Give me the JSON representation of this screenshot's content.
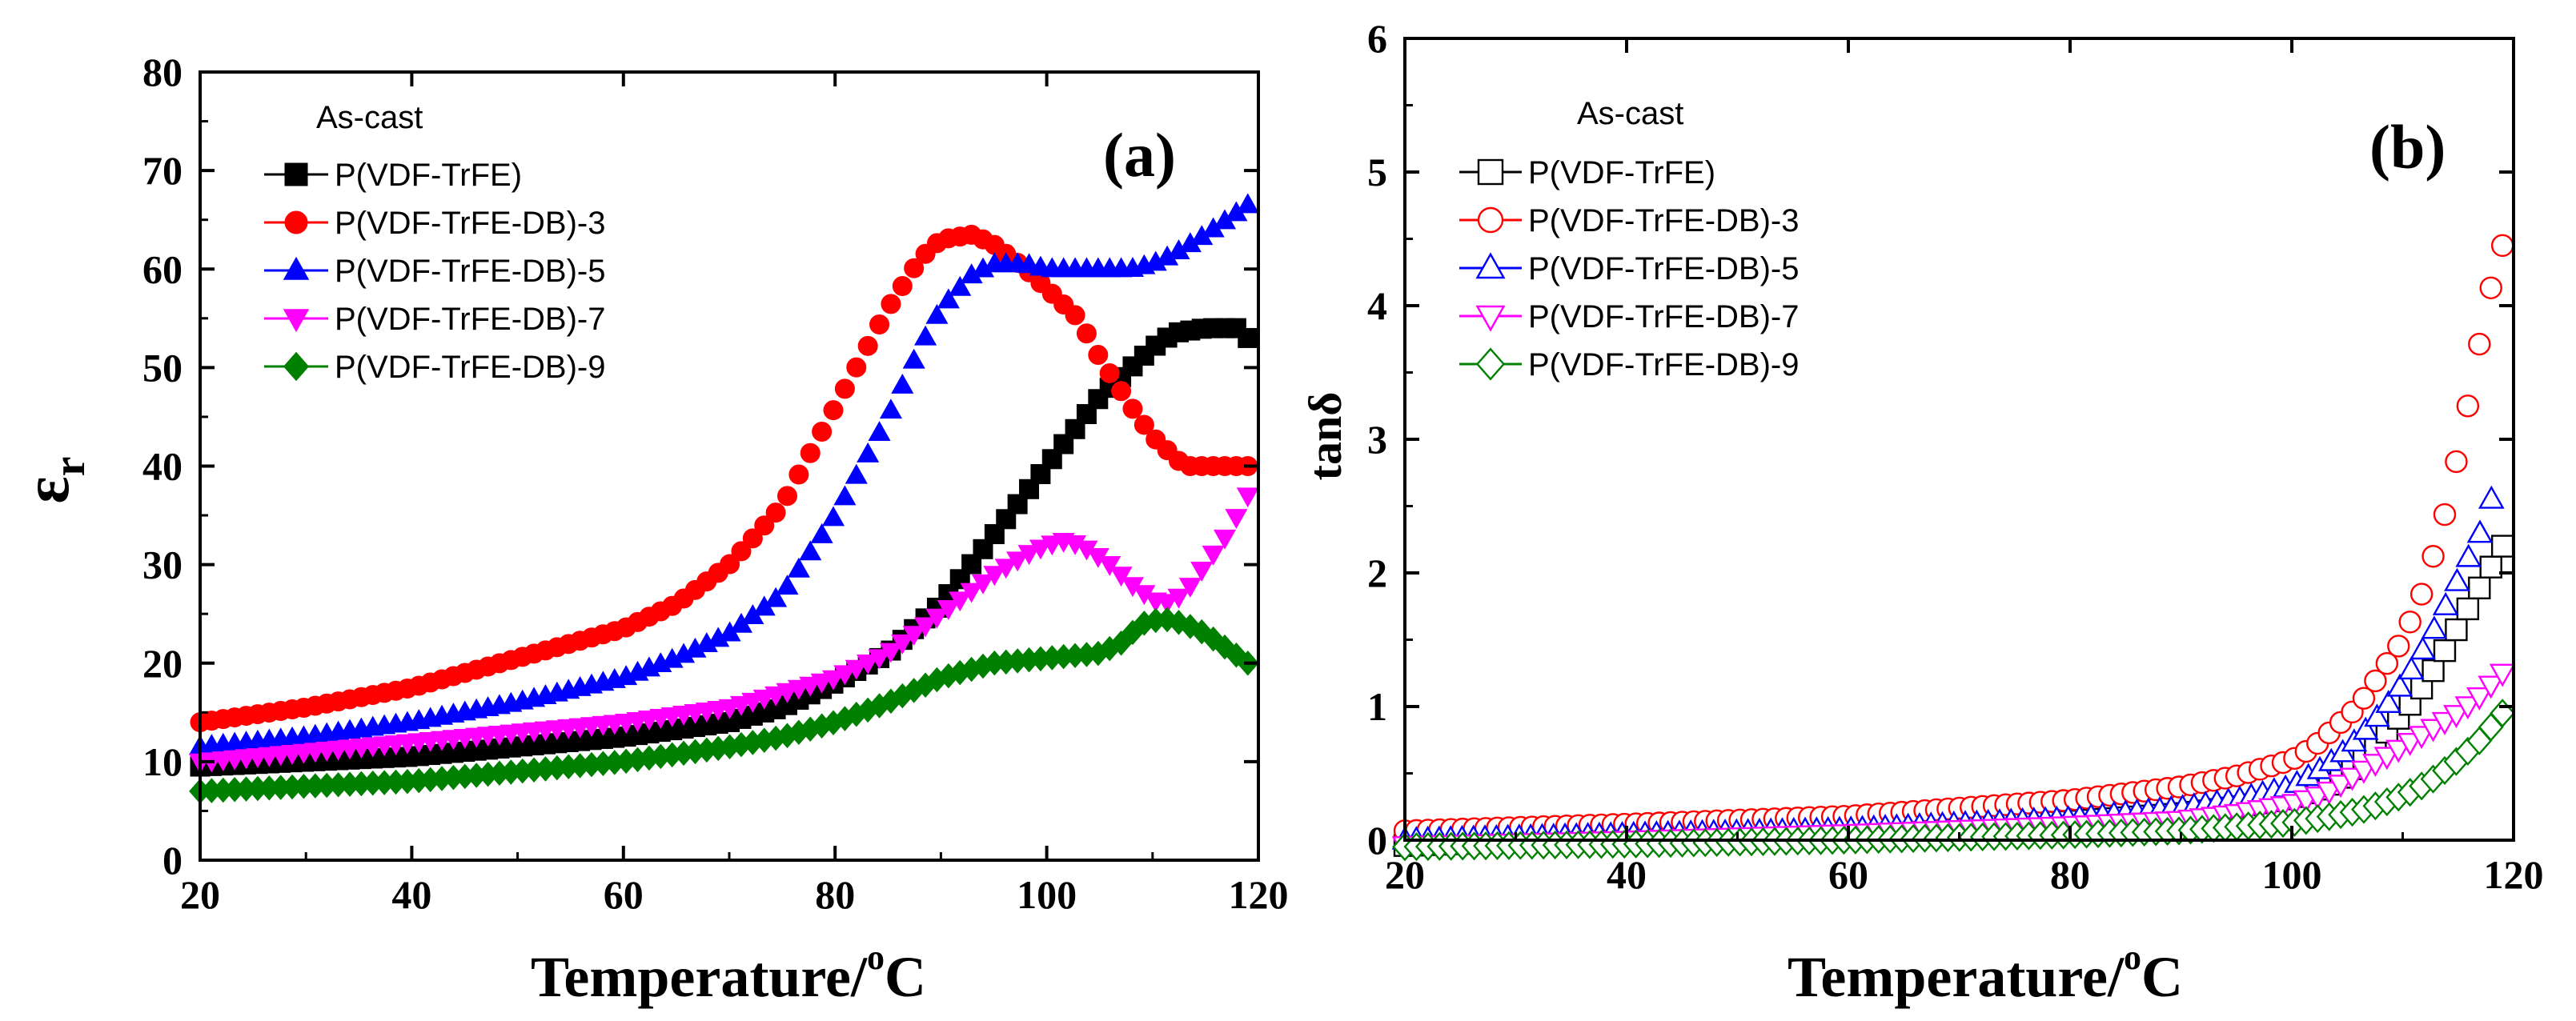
{
  "figure": {
    "panel_a_label": "(a)",
    "panel_b_label": "(b)"
  },
  "chart_data": [
    {
      "type": "scatter",
      "panel": "(a)",
      "xlabel": "Temperature/",
      "xlabel_sup": "o",
      "xlabel_unit": "C",
      "ylabel": "ε",
      "ylabel_sub": "r",
      "xlim": [
        20,
        120
      ],
      "ylim": [
        0,
        80
      ],
      "xticks": [
        20,
        40,
        60,
        80,
        100,
        120
      ],
      "yticks": [
        0,
        10,
        20,
        30,
        40,
        50,
        60,
        70,
        80
      ],
      "legend_title": "As-cast",
      "legend_position": "top-left",
      "filled_markers": true,
      "series": [
        {
          "name": "P(VDF-TrFE)",
          "color": "#000000",
          "marker": "square",
          "x": [
            20,
            30,
            40,
            50,
            60,
            70,
            75,
            80,
            85,
            90,
            95,
            100,
            105,
            108,
            110,
            112,
            115,
            118,
            119
          ],
          "y": [
            9.5,
            10,
            10.5,
            11.5,
            12.5,
            14,
            15.5,
            18,
            21,
            26,
            33,
            40,
            47,
            50,
            52,
            53.5,
            54,
            54,
            53
          ]
        },
        {
          "name": "P(VDF-TrFE-DB)-3",
          "color": "#ff0000",
          "marker": "circle",
          "x": [
            20,
            30,
            40,
            50,
            60,
            65,
            70,
            75,
            78,
            80,
            83,
            85,
            88,
            90,
            93,
            95,
            98,
            100,
            103,
            105,
            108,
            110,
            112,
            113,
            115,
            119
          ],
          "y": [
            14,
            15.5,
            17.5,
            20.5,
            23.5,
            26,
            30,
            36,
            42,
            46,
            52,
            56,
            61,
            63,
            63.5,
            62.5,
            60,
            58,
            55,
            51,
            46,
            43,
            41,
            40,
            40,
            40
          ]
        },
        {
          "name": "P(VDF-TrFE-DB)-5",
          "color": "#0000ff",
          "marker": "triangle-up",
          "x": [
            20,
            30,
            40,
            50,
            60,
            65,
            70,
            75,
            80,
            85,
            88,
            90,
            93,
            95,
            98,
            100,
            103,
            105,
            108,
            110,
            112,
            115,
            117,
            119
          ],
          "y": [
            11.5,
            12.5,
            14,
            16,
            18.5,
            20.5,
            23,
            27,
            35,
            45,
            52,
            56,
            59.5,
            60.5,
            60.5,
            60,
            60,
            60,
            60,
            60.5,
            61.5,
            63.5,
            65,
            66.5
          ]
        },
        {
          "name": "P(VDF-TrFE-DB)-7",
          "color": "#ff00ff",
          "marker": "triangle-down",
          "x": [
            20,
            30,
            40,
            50,
            60,
            70,
            75,
            80,
            85,
            90,
            95,
            98,
            100,
            102,
            104,
            106,
            108,
            110,
            111,
            113,
            115,
            117,
            119
          ],
          "y": [
            10,
            11,
            12,
            13,
            14,
            15.5,
            17,
            18.5,
            21,
            25,
            29,
            31,
            32,
            32.5,
            31.5,
            30,
            28,
            26.5,
            26,
            27,
            30,
            33,
            37
          ]
        },
        {
          "name": "P(VDF-TrFE-DB)-9",
          "color": "#008000",
          "marker": "diamond",
          "x": [
            20,
            30,
            40,
            50,
            60,
            70,
            75,
            80,
            85,
            90,
            95,
            100,
            105,
            107,
            109,
            111,
            113,
            115,
            117,
            119
          ],
          "y": [
            7,
            7.5,
            8,
            9,
            10,
            11.5,
            12.5,
            14,
            16,
            18.5,
            20,
            20.5,
            21,
            22,
            24,
            24.5,
            24,
            23,
            21.5,
            20
          ]
        }
      ]
    },
    {
      "type": "scatter",
      "panel": "(b)",
      "xlabel": "Temperature/",
      "xlabel_sup": "o",
      "xlabel_unit": "C",
      "ylabel": "tanδ",
      "xlim": [
        20,
        120
      ],
      "ylim": [
        0,
        6
      ],
      "xticks": [
        20,
        40,
        60,
        80,
        100,
        120
      ],
      "yticks": [
        0,
        1,
        2,
        3,
        4,
        5,
        6
      ],
      "legend_title": "As-cast",
      "legend_position": "top-left",
      "filled_markers": false,
      "series": [
        {
          "name": "P(VDF-TrFE)",
          "color": "#000000",
          "marker": "square",
          "x": [
            20,
            40,
            60,
            80,
            90,
            95,
            100,
            103,
            105,
            107,
            109,
            111,
            113,
            115,
            117,
            119
          ],
          "y": [
            -0.04,
            0.02,
            0.07,
            0.14,
            0.2,
            0.25,
            0.32,
            0.4,
            0.5,
            0.65,
            0.85,
            1.05,
            1.3,
            1.6,
            1.9,
            2.2
          ]
        },
        {
          "name": "P(VDF-TrFE-DB)-3",
          "color": "#ff0000",
          "marker": "circle",
          "x": [
            20,
            40,
            60,
            80,
            90,
            95,
            100,
            102,
            104,
            106,
            108,
            110,
            112,
            114,
            115,
            116,
            117,
            118,
            119
          ],
          "y": [
            0.07,
            0.12,
            0.18,
            0.3,
            0.4,
            0.48,
            0.6,
            0.7,
            0.85,
            1.0,
            1.25,
            1.5,
            1.9,
            2.5,
            2.9,
            3.3,
            3.75,
            4.15,
            4.45
          ]
        },
        {
          "name": "P(VDF-TrFE-DB)-5",
          "color": "#0000ff",
          "marker": "triangle-up",
          "x": [
            20,
            40,
            60,
            80,
            90,
            95,
            100,
            103,
            105,
            107,
            109,
            111,
            113,
            115,
            117,
            118
          ],
          "y": [
            0.0,
            0.04,
            0.08,
            0.16,
            0.24,
            0.3,
            0.4,
            0.55,
            0.68,
            0.85,
            1.05,
            1.3,
            1.6,
            1.95,
            2.3,
            2.55
          ]
        },
        {
          "name": "P(VDF-TrFE-DB)-7",
          "color": "#ff00ff",
          "marker": "triangle-down",
          "x": [
            20,
            40,
            60,
            80,
            90,
            95,
            100,
            103,
            105,
            107,
            109,
            111,
            113,
            115,
            117,
            119
          ],
          "y": [
            -0.04,
            0.0,
            0.05,
            0.11,
            0.15,
            0.2,
            0.27,
            0.35,
            0.45,
            0.55,
            0.65,
            0.75,
            0.85,
            0.95,
            1.08,
            1.25
          ]
        },
        {
          "name": "P(VDF-TrFE-DB)-9",
          "color": "#008000",
          "marker": "diamond",
          "x": [
            20,
            40,
            60,
            80,
            90,
            95,
            100,
            103,
            105,
            107,
            109,
            111,
            113,
            115,
            117,
            119
          ],
          "y": [
            -0.05,
            -0.03,
            0.0,
            0.04,
            0.07,
            0.1,
            0.13,
            0.17,
            0.2,
            0.24,
            0.3,
            0.37,
            0.47,
            0.6,
            0.75,
            0.95
          ]
        }
      ]
    }
  ]
}
